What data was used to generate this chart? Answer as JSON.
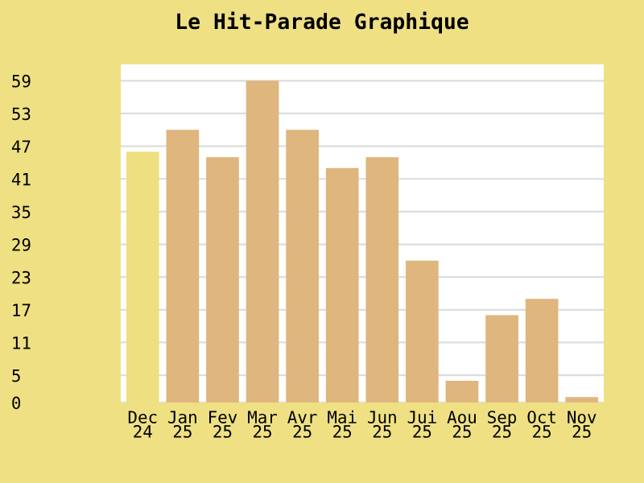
{
  "chart_data": {
    "type": "bar",
    "title": "Le Hit-Parade Graphique",
    "categories": [
      "Dec\n24",
      "Jan\n25",
      "Fev\n25",
      "Mar\n25",
      "Avr\n25",
      "Mai\n25",
      "Jun\n25",
      "Jui\n25",
      "Aou\n25",
      "Sep\n25",
      "Oct\n25",
      "Nov\n25"
    ],
    "values": [
      46,
      50,
      45,
      59,
      50,
      43,
      45,
      26,
      4,
      16,
      19,
      1
    ],
    "colors": [
      "#eedf80",
      "#deb67e",
      "#deb67e",
      "#deb67e",
      "#deb67e",
      "#deb67e",
      "#deb67e",
      "#deb67e",
      "#deb67e",
      "#deb67e",
      "#deb67e",
      "#deb67e"
    ],
    "ylim": [
      0,
      62
    ],
    "yticks": [
      0,
      5,
      11,
      17,
      23,
      29,
      35,
      41,
      47,
      53,
      59
    ],
    "grid": "y"
  }
}
